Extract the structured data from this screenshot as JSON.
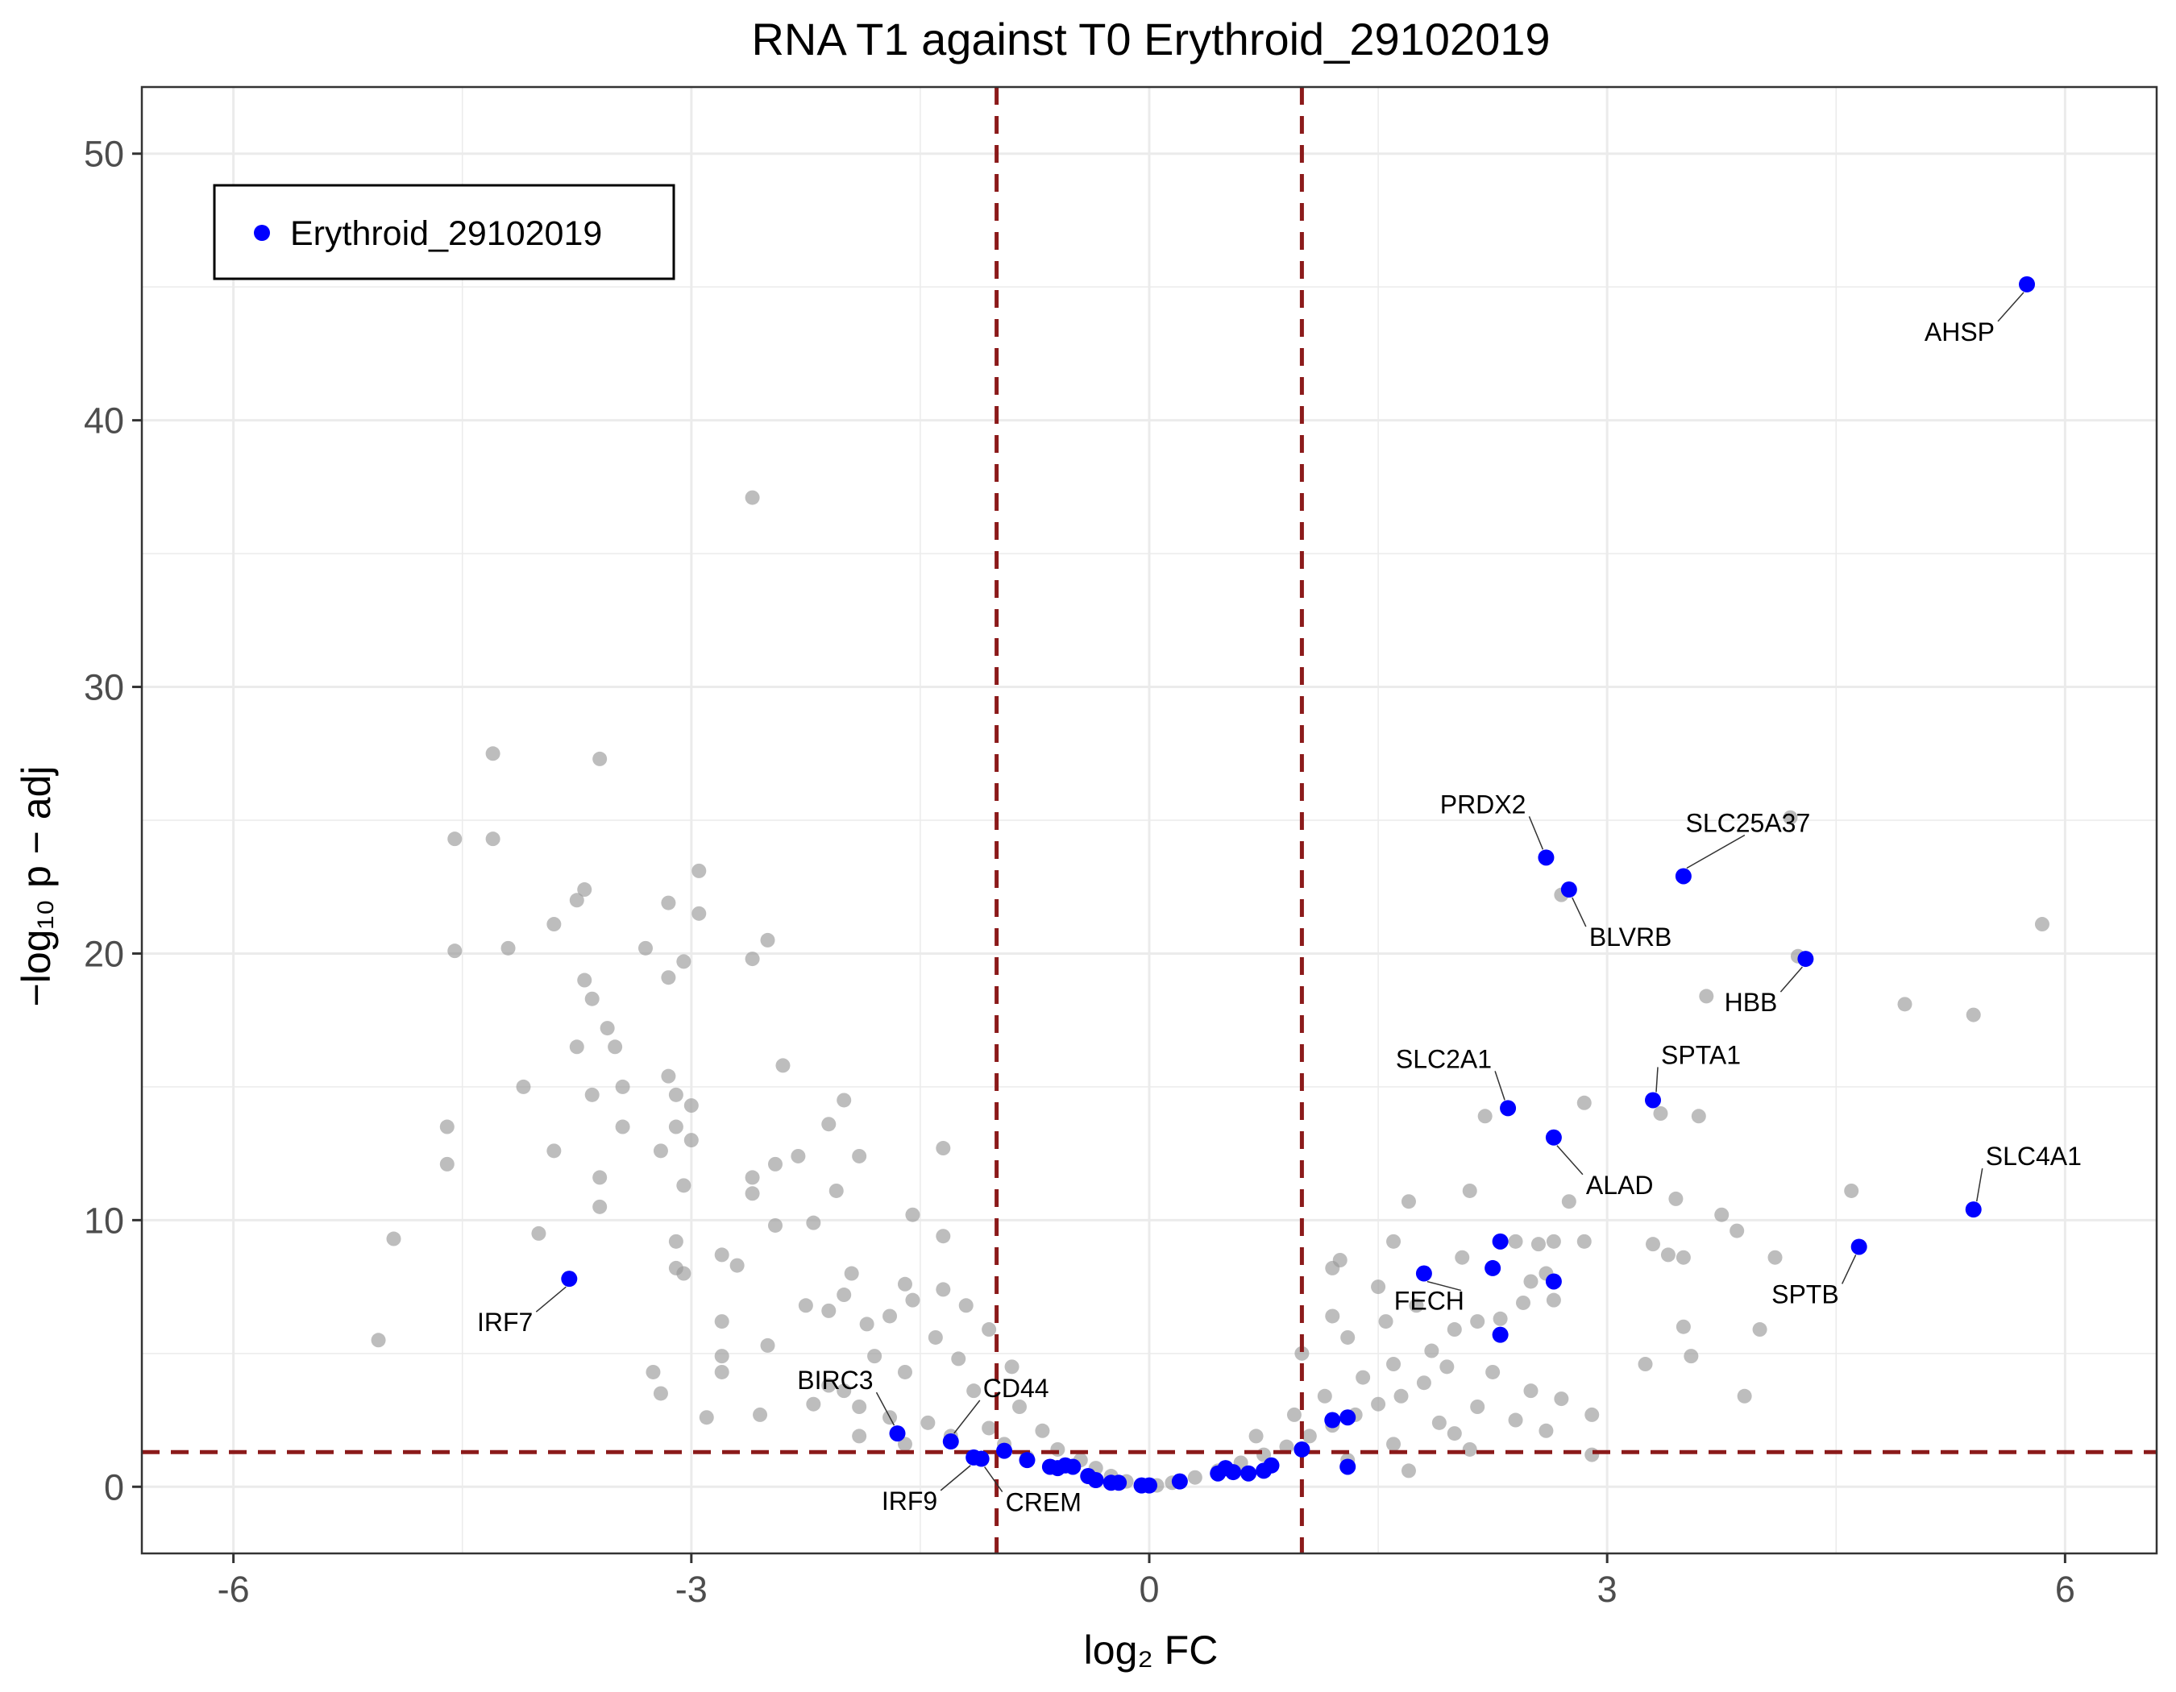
{
  "chart_data": {
    "type": "scatter",
    "title": "RNA T1 against T0 Erythroid_29102019",
    "xlabel": "log₂ FC",
    "ylabel": "−log₁₀ p − adj",
    "xlim": [
      -6.6,
      6.6
    ],
    "ylim": [
      -2.5,
      52.5
    ],
    "x_ticks": [
      -6,
      -3,
      0,
      3,
      6
    ],
    "x_tick_labels": [
      "-6",
      "-3",
      "0",
      "3",
      "6"
    ],
    "y_ticks": [
      0,
      10,
      20,
      30,
      40,
      50
    ],
    "y_tick_labels": [
      "0",
      "10",
      "20",
      "30",
      "40",
      "50"
    ],
    "grid": true,
    "thresholds": {
      "log2fc": [
        -1,
        1
      ],
      "neg_log10_padj": 1.3,
      "color": "#8b1a1a"
    },
    "legend": {
      "position": "top-left",
      "entries": [
        "Erythroid_29102019"
      ]
    },
    "background_points": {
      "color": "#999999",
      "points": [
        [
          -2.6,
          37.1
        ],
        [
          -4.3,
          27.5
        ],
        [
          -3.6,
          27.3
        ],
        [
          -4.55,
          24.3
        ],
        [
          -4.3,
          24.3
        ],
        [
          -2.95,
          23.1
        ],
        [
          -3.7,
          22.4
        ],
        [
          -3.75,
          22.0
        ],
        [
          -3.15,
          21.9
        ],
        [
          -2.95,
          21.5
        ],
        [
          -3.9,
          21.1
        ],
        [
          -2.5,
          20.5
        ],
        [
          -3.3,
          20.2
        ],
        [
          -4.2,
          20.2
        ],
        [
          -4.55,
          20.1
        ],
        [
          -2.6,
          19.8
        ],
        [
          -3.05,
          19.7
        ],
        [
          -3.15,
          19.1
        ],
        [
          -3.7,
          19.0
        ],
        [
          -3.65,
          18.3
        ],
        [
          -3.55,
          17.2
        ],
        [
          -3.5,
          16.5
        ],
        [
          -3.75,
          16.5
        ],
        [
          -2.4,
          15.8
        ],
        [
          -3.15,
          15.4
        ],
        [
          -4.1,
          15.0
        ],
        [
          -3.45,
          15.0
        ],
        [
          -3.1,
          14.7
        ],
        [
          -3.65,
          14.7
        ],
        [
          -2.0,
          14.5
        ],
        [
          -3.0,
          14.3
        ],
        [
          -2.1,
          13.6
        ],
        [
          -3.1,
          13.5
        ],
        [
          -3.45,
          13.5
        ],
        [
          -4.6,
          13.5
        ],
        [
          -3.0,
          13.0
        ],
        [
          -3.2,
          12.6
        ],
        [
          -3.9,
          12.6
        ],
        [
          -1.9,
          12.4
        ],
        [
          -2.3,
          12.4
        ],
        [
          -2.45,
          12.1
        ],
        [
          -4.6,
          12.1
        ],
        [
          -2.6,
          11.6
        ],
        [
          -3.6,
          11.6
        ],
        [
          -3.05,
          11.3
        ],
        [
          -2.05,
          11.1
        ],
        [
          -2.6,
          11.0
        ],
        [
          -1.55,
          10.2
        ],
        [
          -2.2,
          9.9
        ],
        [
          -3.6,
          10.5
        ],
        [
          -4.0,
          9.5
        ],
        [
          -1.35,
          9.4
        ],
        [
          -4.95,
          9.3
        ],
        [
          -3.1,
          9.2
        ],
        [
          -2.8,
          8.7
        ],
        [
          -2.7,
          8.3
        ],
        [
          -3.1,
          8.2
        ],
        [
          -1.95,
          8.0
        ],
        [
          -3.05,
          8.0
        ],
        [
          -1.6,
          7.6
        ],
        [
          -2.0,
          7.2
        ],
        [
          -1.35,
          7.4
        ],
        [
          -1.55,
          7.0
        ],
        [
          -2.25,
          6.8
        ],
        [
          -2.1,
          6.6
        ],
        [
          -2.8,
          6.2
        ],
        [
          -1.85,
          6.1
        ],
        [
          -5.05,
          5.5
        ],
        [
          -2.5,
          5.3
        ],
        [
          -2.8,
          4.9
        ],
        [
          -3.25,
          4.3
        ],
        [
          -2.8,
          4.3
        ],
        [
          -3.2,
          3.5
        ],
        [
          -2.1,
          3.8
        ],
        [
          -2.2,
          3.1
        ],
        [
          -2.55,
          2.7
        ],
        [
          -2.9,
          2.6
        ],
        [
          -1.35,
          12.7
        ],
        [
          -2.45,
          9.8
        ],
        [
          -1.7,
          6.4
        ],
        [
          -1.2,
          6.8
        ],
        [
          -1.4,
          5.6
        ],
        [
          -1.05,
          5.9
        ],
        [
          -1.8,
          4.9
        ],
        [
          -1.6,
          4.3
        ],
        [
          -1.25,
          4.8
        ],
        [
          -0.9,
          4.5
        ],
        [
          -2.0,
          3.6
        ],
        [
          -1.9,
          3.0
        ],
        [
          -1.7,
          2.6
        ],
        [
          -1.45,
          2.4
        ],
        [
          -1.15,
          3.6
        ],
        [
          -0.85,
          3.0
        ],
        [
          -1.05,
          2.2
        ],
        [
          -1.3,
          1.9
        ],
        [
          -0.7,
          2.1
        ],
        [
          -0.95,
          1.6
        ],
        [
          -0.6,
          1.4
        ],
        [
          -0.45,
          1.0
        ],
        [
          -0.35,
          0.7
        ],
        [
          -0.25,
          0.4
        ],
        [
          -0.15,
          0.2
        ],
        [
          -0.8,
          1.1
        ],
        [
          -0.55,
          0.8
        ],
        [
          -1.6,
          1.6
        ],
        [
          -1.9,
          1.9
        ],
        [
          -0.05,
          0.05
        ],
        [
          0.05,
          0.05
        ],
        [
          0.15,
          0.15
        ],
        [
          0.3,
          0.35
        ],
        [
          0.45,
          0.6
        ],
        [
          0.6,
          0.9
        ],
        [
          0.75,
          1.2
        ],
        [
          0.9,
          1.5
        ],
        [
          1.05,
          1.9
        ],
        [
          1.2,
          2.3
        ],
        [
          1.35,
          2.7
        ],
        [
          1.5,
          3.1
        ],
        [
          1.65,
          3.4
        ],
        [
          1.8,
          3.9
        ],
        [
          0.7,
          1.9
        ],
        [
          0.95,
          2.7
        ],
        [
          1.15,
          3.4
        ],
        [
          1.4,
          4.1
        ],
        [
          1.6,
          4.6
        ],
        [
          1.85,
          5.1
        ],
        [
          2.0,
          5.9
        ],
        [
          2.15,
          6.2
        ],
        [
          2.3,
          6.3
        ],
        [
          2.45,
          6.9
        ],
        [
          2.65,
          7.0
        ],
        [
          1.3,
          5.6
        ],
        [
          1.55,
          6.2
        ],
        [
          1.2,
          6.4
        ],
        [
          1.0,
          5.0
        ],
        [
          1.75,
          6.8
        ],
        [
          1.95,
          4.5
        ],
        [
          2.25,
          4.3
        ],
        [
          2.5,
          3.6
        ],
        [
          2.7,
          3.3
        ],
        [
          2.9,
          2.7
        ],
        [
          2.9,
          1.2
        ],
        [
          2.4,
          2.5
        ],
        [
          2.15,
          3.0
        ],
        [
          1.9,
          2.4
        ],
        [
          1.6,
          1.6
        ],
        [
          1.3,
          1.0
        ],
        [
          1.7,
          0.6
        ],
        [
          2.1,
          1.4
        ],
        [
          2.0,
          2.0
        ],
        [
          2.6,
          2.1
        ],
        [
          1.5,
          7.5
        ],
        [
          1.7,
          10.7
        ],
        [
          1.6,
          9.2
        ],
        [
          1.2,
          8.2
        ],
        [
          1.25,
          8.5
        ],
        [
          2.05,
          8.6
        ],
        [
          2.1,
          11.1
        ],
        [
          2.4,
          9.2
        ],
        [
          2.55,
          9.1
        ],
        [
          2.65,
          9.2
        ],
        [
          2.6,
          8.0
        ],
        [
          2.5,
          7.7
        ],
        [
          2.75,
          10.7
        ],
        [
          2.85,
          9.2
        ],
        [
          2.2,
          13.9
        ],
        [
          2.85,
          14.4
        ],
        [
          3.35,
          14.0
        ],
        [
          3.6,
          13.9
        ],
        [
          3.45,
          10.8
        ],
        [
          3.75,
          10.2
        ],
        [
          3.3,
          9.1
        ],
        [
          3.4,
          8.7
        ],
        [
          3.5,
          8.6
        ],
        [
          3.85,
          9.6
        ],
        [
          4.2,
          25.1
        ],
        [
          4.25,
          19.9
        ],
        [
          3.65,
          18.4
        ],
        [
          2.7,
          22.2
        ],
        [
          4.95,
          18.1
        ],
        [
          5.4,
          17.7
        ],
        [
          5.85,
          21.1
        ],
        [
          4.6,
          11.1
        ],
        [
          3.5,
          6.0
        ],
        [
          3.55,
          4.9
        ],
        [
          3.25,
          4.6
        ],
        [
          4.0,
          5.9
        ],
        [
          3.9,
          3.4
        ],
        [
          4.1,
          8.6
        ]
      ]
    },
    "highlight_points": {
      "color": "#0000ff",
      "series_name": "Erythroid_29102019",
      "points": [
        {
          "x": 5.75,
          "y": 45.1,
          "label": "AHSP"
        },
        {
          "x": 2.6,
          "y": 23.6,
          "label": "PRDX2"
        },
        {
          "x": 3.5,
          "y": 22.9,
          "label": "SLC25A37"
        },
        {
          "x": 2.75,
          "y": 22.4,
          "label": "BLVRB"
        },
        {
          "x": 4.3,
          "y": 19.8,
          "label": "HBB"
        },
        {
          "x": 3.3,
          "y": 14.5,
          "label": "SPTA1"
        },
        {
          "x": 2.35,
          "y": 14.2,
          "label": "SLC2A1"
        },
        {
          "x": 2.65,
          "y": 13.1,
          "label": "ALAD"
        },
        {
          "x": 5.4,
          "y": 10.4,
          "label": "SLC4A1"
        },
        {
          "x": 4.65,
          "y": 9.0,
          "label": "SPTB"
        },
        {
          "x": 1.8,
          "y": 8.0,
          "label": "FECH"
        },
        {
          "x": -3.8,
          "y": 7.8,
          "label": "IRF7"
        },
        {
          "x": -1.65,
          "y": 2.0,
          "label": "BIRC3"
        },
        {
          "x": -1.3,
          "y": 1.7,
          "label": "CD44"
        },
        {
          "x": -1.15,
          "y": 1.1,
          "label": "IRF9"
        },
        {
          "x": -1.1,
          "y": 1.05,
          "label": "CREM"
        },
        {
          "x": 2.3,
          "y": 9.2,
          "label": ""
        },
        {
          "x": 2.25,
          "y": 8.2,
          "label": ""
        },
        {
          "x": 2.65,
          "y": 7.7,
          "label": ""
        },
        {
          "x": 2.3,
          "y": 5.7,
          "label": ""
        },
        {
          "x": 1.2,
          "y": 2.5,
          "label": ""
        },
        {
          "x": 1.3,
          "y": 2.6,
          "label": ""
        },
        {
          "x": 1.0,
          "y": 1.4,
          "label": ""
        },
        {
          "x": 1.3,
          "y": 0.75,
          "label": ""
        },
        {
          "x": 0.8,
          "y": 0.8,
          "label": ""
        },
        {
          "x": 0.75,
          "y": 0.6,
          "label": ""
        },
        {
          "x": 0.55,
          "y": 0.55,
          "label": ""
        },
        {
          "x": 0.5,
          "y": 0.7,
          "label": ""
        },
        {
          "x": 0.45,
          "y": 0.5,
          "label": ""
        },
        {
          "x": 0.65,
          "y": 0.5,
          "label": ""
        },
        {
          "x": 0.2,
          "y": 0.2,
          "label": ""
        },
        {
          "x": 0.0,
          "y": 0.05,
          "label": ""
        },
        {
          "x": -0.05,
          "y": 0.05,
          "label": ""
        },
        {
          "x": -0.2,
          "y": 0.15,
          "label": ""
        },
        {
          "x": -0.25,
          "y": 0.15,
          "label": ""
        },
        {
          "x": -0.35,
          "y": 0.25,
          "label": ""
        },
        {
          "x": -0.4,
          "y": 0.4,
          "label": ""
        },
        {
          "x": -0.5,
          "y": 0.75,
          "label": ""
        },
        {
          "x": -0.6,
          "y": 0.7,
          "label": ""
        },
        {
          "x": -0.55,
          "y": 0.8,
          "label": ""
        },
        {
          "x": -0.65,
          "y": 0.75,
          "label": ""
        },
        {
          "x": -0.8,
          "y": 1.0,
          "label": ""
        },
        {
          "x": -0.95,
          "y": 1.35,
          "label": ""
        }
      ]
    }
  }
}
